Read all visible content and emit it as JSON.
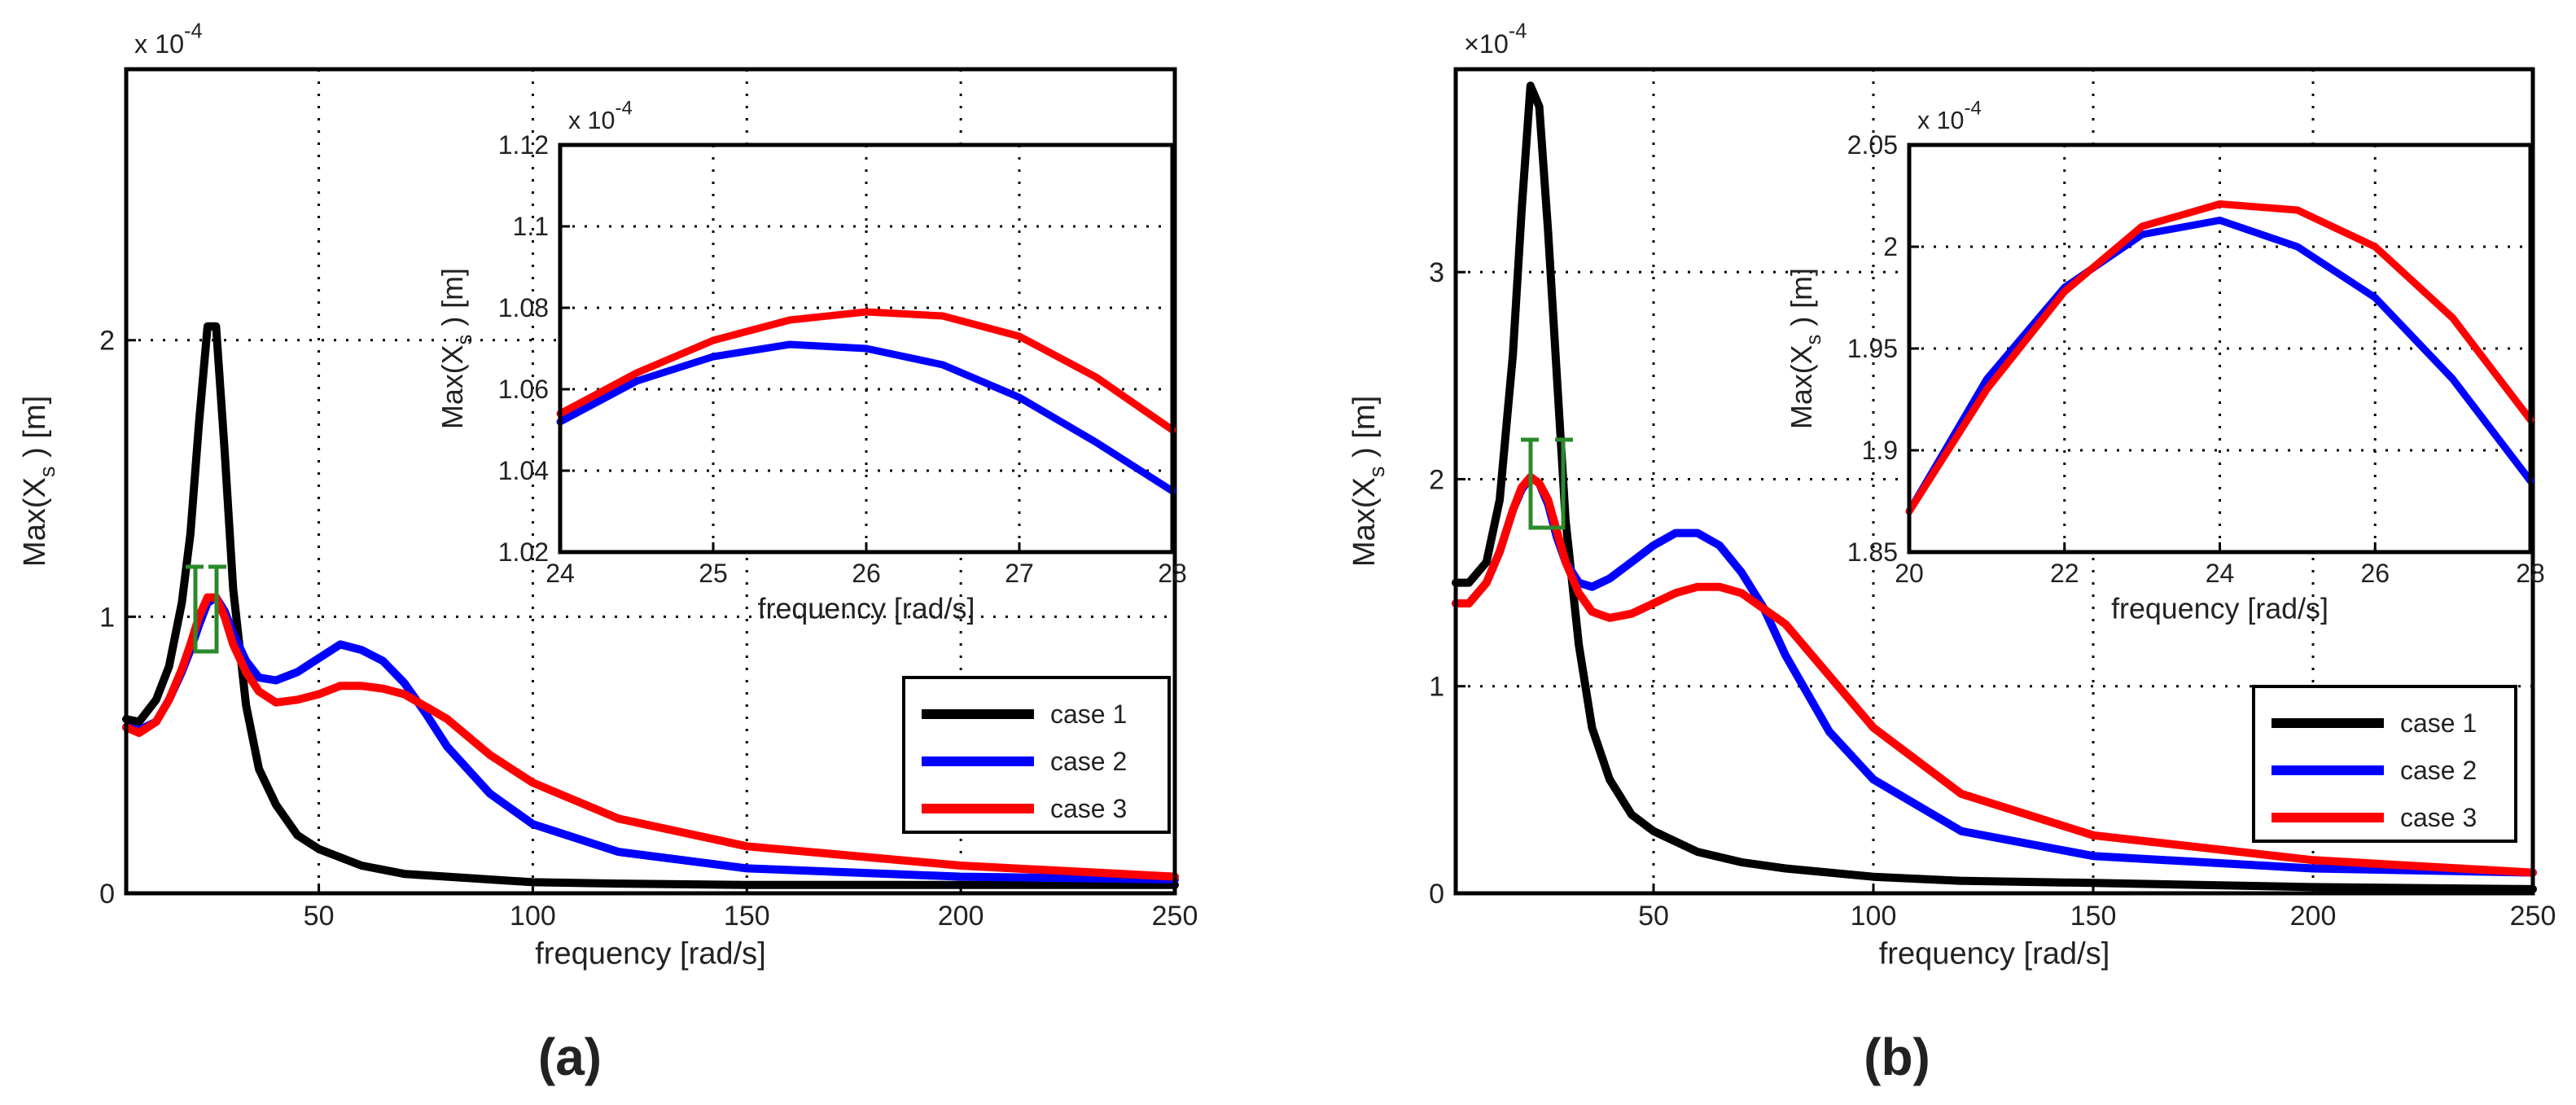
{
  "figure": {
    "panels": [
      {
        "id": "a",
        "panel_label": "(a)",
        "main": {
          "type": "line",
          "xlabel": "frequency [rad/s]",
          "ylabel": "Max(X_s) [m]",
          "ylabel_base": "Max(X",
          "ylabel_sub": "s",
          "ylabel_tail": " ) [m]",
          "exponent": "x 10",
          "exponent_power": "-4",
          "xlim": [
            5,
            250
          ],
          "ylim": [
            0,
            2.98
          ],
          "xticks": [
            50,
            100,
            150,
            200,
            250
          ],
          "xtick_labels": [
            "50",
            "100",
            "150",
            "200",
            "250"
          ],
          "yticks": [
            0,
            1,
            2
          ],
          "ytick_labels": [
            "0",
            "1",
            "2"
          ],
          "grid": true,
          "legend_position": "bottom-right",
          "legend": [
            "case 1",
            "case 2",
            "case 3"
          ],
          "annotation": "green bracket around case 3 peak near 25 rad/s",
          "series": [
            {
              "name": "case 1",
              "color": "#000000",
              "x": [
                5,
                8,
                12,
                15,
                18,
                20,
                22,
                24,
                26,
                28,
                30,
                33,
                36,
                40,
                45,
                50,
                60,
                70,
                80,
                100,
                120,
                150,
                200,
                250
              ],
              "y": [
                0.63,
                0.62,
                0.7,
                0.82,
                1.05,
                1.3,
                1.7,
                2.05,
                2.05,
                1.6,
                1.1,
                0.68,
                0.45,
                0.32,
                0.21,
                0.16,
                0.1,
                0.07,
                0.06,
                0.04,
                0.035,
                0.03,
                0.03,
                0.03
              ]
            },
            {
              "name": "case 2",
              "color": "#0000ff",
              "x": [
                5,
                8,
                12,
                15,
                18,
                20,
                22,
                24,
                26,
                28,
                30,
                33,
                36,
                40,
                45,
                50,
                55,
                60,
                65,
                70,
                75,
                80,
                90,
                100,
                120,
                150,
                200,
                250
              ],
              "y": [
                0.6,
                0.59,
                0.62,
                0.7,
                0.8,
                0.88,
                0.97,
                1.05,
                1.07,
                1.02,
                0.94,
                0.84,
                0.78,
                0.77,
                0.8,
                0.85,
                0.9,
                0.88,
                0.84,
                0.76,
                0.65,
                0.53,
                0.36,
                0.25,
                0.15,
                0.09,
                0.06,
                0.05
              ]
            },
            {
              "name": "case 3",
              "color": "#ff0000",
              "x": [
                5,
                8,
                12,
                15,
                18,
                20,
                22,
                24,
                26,
                28,
                30,
                33,
                36,
                40,
                45,
                50,
                55,
                60,
                65,
                70,
                80,
                90,
                100,
                120,
                150,
                200,
                250
              ],
              "y": [
                0.6,
                0.58,
                0.62,
                0.7,
                0.81,
                0.9,
                1.0,
                1.07,
                1.07,
                1.0,
                0.9,
                0.8,
                0.73,
                0.69,
                0.7,
                0.72,
                0.75,
                0.75,
                0.74,
                0.72,
                0.63,
                0.5,
                0.4,
                0.27,
                0.17,
                0.1,
                0.06
              ]
            }
          ]
        },
        "inset": {
          "type": "line",
          "xlabel": "frequency [rad/s]",
          "ylabel": "Max(X_s) [m]",
          "ylabel_base": "Max(X",
          "ylabel_sub": "s",
          "ylabel_tail": " ) [m]",
          "exponent": "x 10",
          "exponent_power": "-4",
          "xlim": [
            24,
            28
          ],
          "ylim": [
            1.02,
            1.12
          ],
          "xticks": [
            24,
            25,
            26,
            27,
            28
          ],
          "xtick_labels": [
            "24",
            "25",
            "26",
            "27",
            "28"
          ],
          "yticks": [
            1.02,
            1.04,
            1.06,
            1.08,
            1.1,
            1.12
          ],
          "ytick_labels": [
            "1.02",
            "1.04",
            "1.06",
            "1.08",
            "1.1",
            "1.12"
          ],
          "grid": true,
          "series": [
            {
              "name": "case 2",
              "color": "#0000ff",
              "x": [
                24,
                24.5,
                25,
                25.5,
                26,
                26.5,
                27,
                27.5,
                28
              ],
              "y": [
                1.052,
                1.062,
                1.068,
                1.071,
                1.07,
                1.066,
                1.058,
                1.047,
                1.035
              ]
            },
            {
              "name": "case 3",
              "color": "#ff0000",
              "x": [
                24,
                24.5,
                25,
                25.5,
                26,
                26.5,
                27,
                27.5,
                28
              ],
              "y": [
                1.054,
                1.064,
                1.072,
                1.077,
                1.079,
                1.078,
                1.073,
                1.063,
                1.05
              ]
            }
          ]
        }
      },
      {
        "id": "b",
        "panel_label": "(b)",
        "main": {
          "type": "line",
          "xlabel": "frequency [rad/s]",
          "ylabel": "Max(X_s) [m]",
          "ylabel_base": "Max(X",
          "ylabel_sub": "s",
          "ylabel_tail": " ) [m]",
          "exponent": "×10",
          "exponent_power": "-4",
          "xlim": [
            5,
            250
          ],
          "ylim": [
            0,
            3.98
          ],
          "xticks": [
            50,
            100,
            150,
            200,
            250
          ],
          "xtick_labels": [
            "50",
            "100",
            "150",
            "200",
            "250"
          ],
          "yticks": [
            0,
            1,
            2,
            3
          ],
          "ytick_labels": [
            "0",
            "1",
            "2",
            "3"
          ],
          "grid": true,
          "legend_position": "bottom-right",
          "legend": [
            "case 1",
            "case 2",
            "case 3"
          ],
          "annotation": "green bracket around case 3 peak near 22 rad/s",
          "series": [
            {
              "name": "case 1",
              "color": "#000000",
              "x": [
                5,
                8,
                12,
                15,
                18,
                20,
                22,
                24,
                26,
                28,
                30,
                33,
                36,
                40,
                45,
                50,
                60,
                70,
                80,
                100,
                120,
                150,
                200,
                250
              ],
              "y": [
                1.5,
                1.5,
                1.6,
                1.9,
                2.6,
                3.3,
                3.9,
                3.8,
                3.2,
                2.5,
                1.8,
                1.2,
                0.8,
                0.55,
                0.38,
                0.3,
                0.2,
                0.15,
                0.12,
                0.08,
                0.06,
                0.05,
                0.03,
                0.02
              ]
            },
            {
              "name": "case 2",
              "color": "#0000ff",
              "x": [
                5,
                8,
                12,
                15,
                18,
                20,
                22,
                24,
                26,
                28,
                30,
                33,
                36,
                40,
                45,
                50,
                55,
                60,
                65,
                70,
                75,
                80,
                90,
                100,
                120,
                150,
                200,
                250
              ],
              "y": [
                1.4,
                1.4,
                1.5,
                1.65,
                1.85,
                1.95,
                2.01,
                1.98,
                1.88,
                1.72,
                1.6,
                1.5,
                1.48,
                1.52,
                1.6,
                1.68,
                1.74,
                1.74,
                1.68,
                1.55,
                1.38,
                1.15,
                0.78,
                0.55,
                0.3,
                0.18,
                0.12,
                0.1
              ]
            },
            {
              "name": "case 3",
              "color": "#ff0000",
              "x": [
                5,
                8,
                12,
                15,
                18,
                20,
                22,
                24,
                26,
                28,
                30,
                33,
                36,
                40,
                45,
                50,
                55,
                60,
                65,
                70,
                80,
                90,
                100,
                120,
                150,
                200,
                250
              ],
              "y": [
                1.4,
                1.4,
                1.5,
                1.65,
                1.85,
                1.96,
                2.01,
                1.98,
                1.9,
                1.75,
                1.6,
                1.45,
                1.36,
                1.33,
                1.35,
                1.4,
                1.45,
                1.48,
                1.48,
                1.45,
                1.3,
                1.05,
                0.8,
                0.48,
                0.28,
                0.16,
                0.1
              ]
            }
          ]
        },
        "inset": {
          "type": "line",
          "xlabel": "frequency [rad/s]",
          "ylabel": "Max(X_s) [m]",
          "ylabel_base": "Max(X",
          "ylabel_sub": "s",
          "ylabel_tail": " ) [m]",
          "exponent": "x 10",
          "exponent_power": "-4",
          "xlim": [
            20,
            28
          ],
          "ylim": [
            1.85,
            2.05
          ],
          "xticks": [
            20,
            22,
            24,
            26,
            28
          ],
          "xtick_labels": [
            "20",
            "22",
            "24",
            "26",
            "28"
          ],
          "yticks": [
            1.85,
            1.9,
            1.95,
            2,
            2.05
          ],
          "ytick_labels": [
            "1.85",
            "1.9",
            "1.95",
            "2",
            "2.05"
          ],
          "grid": true,
          "series": [
            {
              "name": "case 2",
              "color": "#0000ff",
              "x": [
                20,
                21,
                22,
                23,
                24,
                25,
                26,
                27,
                28
              ],
              "y": [
                1.87,
                1.935,
                1.98,
                2.006,
                2.013,
                2.0,
                1.975,
                1.935,
                1.885
              ]
            },
            {
              "name": "case 3",
              "color": "#ff0000",
              "x": [
                20,
                21,
                22,
                23,
                24,
                25,
                26,
                27,
                28
              ],
              "y": [
                1.87,
                1.93,
                1.978,
                2.01,
                2.021,
                2.018,
                2.0,
                1.965,
                1.915
              ]
            }
          ]
        }
      }
    ]
  },
  "chart_data": [
    {
      "type": "line",
      "title": "(a)",
      "xlabel": "frequency [rad/s]",
      "ylabel": "Max(X_s) [m] (x 10^-4)",
      "xlim": [
        5,
        250
      ],
      "ylim": [
        0,
        2.98
      ],
      "series_ref": "figure.panels.0.main.series"
    },
    {
      "type": "line",
      "title": "(a) inset",
      "xlabel": "frequency [rad/s]",
      "ylabel": "Max(X_s) [m] (x 10^-4)",
      "xlim": [
        24,
        28
      ],
      "ylim": [
        1.02,
        1.12
      ],
      "series_ref": "figure.panels.0.inset.series"
    },
    {
      "type": "line",
      "title": "(b)",
      "xlabel": "frequency [rad/s]",
      "ylabel": "Max(X_s) [m] (x 10^-4)",
      "xlim": [
        5,
        250
      ],
      "ylim": [
        0,
        3.98
      ],
      "series_ref": "figure.panels.1.main.series"
    },
    {
      "type": "line",
      "title": "(b) inset",
      "xlabel": "frequency [rad/s]",
      "ylabel": "Max(X_s) [m] (x 10^-4)",
      "xlim": [
        20,
        28
      ],
      "ylim": [
        1.85,
        2.05
      ],
      "series_ref": "figure.panels.1.inset.series"
    }
  ]
}
